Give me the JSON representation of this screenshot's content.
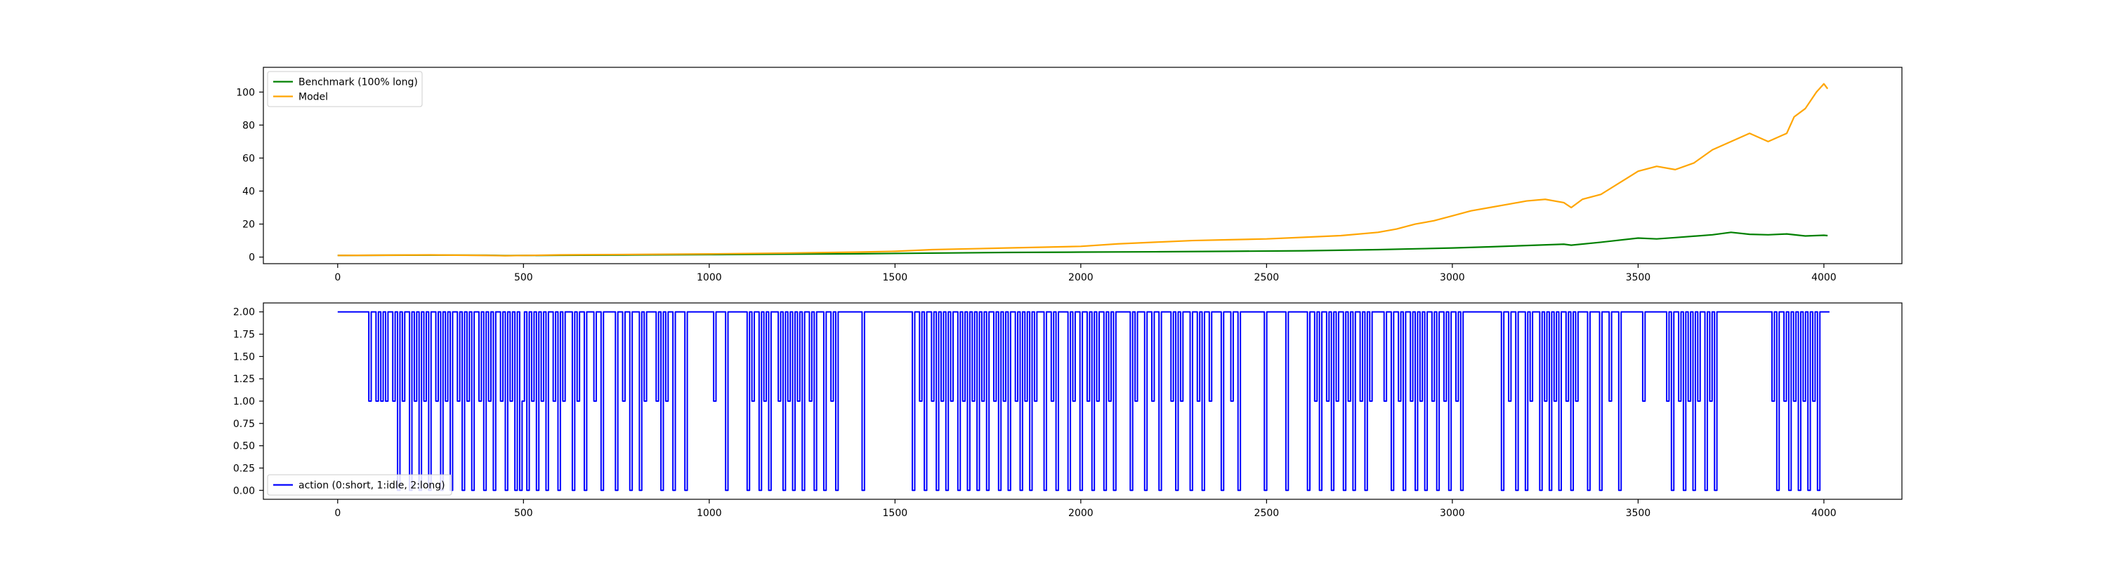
{
  "chart_data": [
    {
      "type": "line",
      "title": "",
      "xlabel": "",
      "ylabel": "",
      "xlim": [
        -200,
        4210
      ],
      "ylim": [
        -4,
        115
      ],
      "xticks": [
        0,
        500,
        1000,
        1500,
        2000,
        2500,
        3000,
        3500,
        4000
      ],
      "xtick_labels": [
        "0",
        "500",
        "1000",
        "1500",
        "2000",
        "2500",
        "3000",
        "3500",
        "4000"
      ],
      "yticks": [
        0,
        20,
        40,
        60,
        80,
        100
      ],
      "ytick_labels": [
        "0",
        "20",
        "40",
        "60",
        "80",
        "100"
      ],
      "grid": false,
      "legend": "upper left",
      "series": [
        {
          "name": "Benchmark (100% long)",
          "color": "#008000",
          "x": [
            0,
            250,
            400,
            450,
            600,
            800,
            1000,
            1200,
            1400,
            1600,
            1800,
            2000,
            2200,
            2400,
            2600,
            2800,
            2900,
            3000,
            3100,
            3200,
            3300,
            3320,
            3400,
            3500,
            3550,
            3600,
            3700,
            3750,
            3800,
            3850,
            3900,
            3950,
            4000,
            4010
          ],
          "y": [
            1.0,
            1.2,
            1.1,
            0.9,
            1.1,
            1.3,
            1.5,
            1.8,
            2.0,
            2.4,
            2.8,
            3.0,
            3.2,
            3.5,
            3.8,
            4.5,
            5.0,
            5.5,
            6.2,
            7.0,
            7.8,
            7.2,
            9.0,
            11.5,
            11.0,
            11.8,
            13.5,
            15.0,
            13.8,
            13.5,
            14.0,
            12.8,
            13.2,
            13.0
          ]
        },
        {
          "name": "Model",
          "color": "#FFA500",
          "x": [
            0,
            250,
            400,
            450,
            600,
            800,
            1000,
            1200,
            1400,
            1500,
            1600,
            1700,
            1800,
            1900,
            2000,
            2100,
            2200,
            2300,
            2400,
            2500,
            2600,
            2700,
            2800,
            2850,
            2900,
            2950,
            3000,
            3050,
            3100,
            3150,
            3200,
            3250,
            3300,
            3320,
            3350,
            3400,
            3450,
            3500,
            3550,
            3600,
            3650,
            3700,
            3750,
            3800,
            3850,
            3900,
            3920,
            3950,
            3980,
            4000,
            4010
          ],
          "y": [
            1.0,
            1.3,
            1.0,
            0.8,
            1.3,
            1.6,
            1.9,
            2.4,
            3.0,
            3.5,
            4.5,
            5.0,
            5.5,
            6.0,
            6.5,
            8.0,
            9.0,
            10.0,
            10.5,
            11.0,
            12.0,
            13.0,
            15.0,
            17.0,
            20.0,
            22.0,
            25.0,
            28.0,
            30.0,
            32.0,
            34.0,
            35.0,
            33.0,
            30.0,
            35.0,
            38.0,
            45.0,
            52.0,
            55.0,
            53.0,
            57.0,
            65.0,
            70.0,
            75.0,
            70.0,
            75.0,
            85.0,
            90.0,
            100.0,
            105.0,
            102.0
          ]
        }
      ]
    },
    {
      "type": "line",
      "step": true,
      "title": "",
      "xlabel": "",
      "ylabel": "",
      "xlim": [
        -200,
        4210
      ],
      "ylim": [
        -0.1,
        2.1
      ],
      "xticks": [
        0,
        500,
        1000,
        1500,
        2000,
        2500,
        3000,
        3500,
        4000
      ],
      "xtick_labels": [
        "0",
        "500",
        "1000",
        "1500",
        "2000",
        "2500",
        "3000",
        "3500",
        "4000"
      ],
      "yticks": [
        0.0,
        0.25,
        0.5,
        0.75,
        1.0,
        1.25,
        1.5,
        1.75,
        2.0
      ],
      "ytick_labels": [
        "0.00",
        "0.25",
        "0.50",
        "0.75",
        "1.00",
        "1.25",
        "1.50",
        "1.75",
        "2.00"
      ],
      "grid": false,
      "legend": "lower left",
      "series": [
        {
          "name": "action (0:short, 1:idle, 2:long)",
          "color": "#0000FF",
          "x_start": 0,
          "x_end": 4015,
          "values": [
            2,
            2,
            2,
            2,
            2,
            2,
            2,
            2,
            2,
            2,
            2,
            2,
            2,
            1,
            2,
            2,
            1,
            2,
            1,
            2,
            1,
            2,
            2,
            1,
            2,
            0,
            2,
            1,
            2,
            2,
            0,
            2,
            1,
            2,
            0,
            2,
            1,
            2,
            0,
            2,
            2,
            1,
            2,
            0,
            2,
            1,
            2,
            0,
            2,
            2,
            1,
            2,
            0,
            2,
            1,
            2,
            0,
            2,
            2,
            1,
            2,
            0,
            2,
            1,
            2,
            0,
            2,
            2,
            1,
            2,
            0,
            2,
            1,
            2,
            0,
            2,
            0,
            1,
            2,
            0,
            2,
            1,
            2,
            0,
            2,
            1,
            2,
            0,
            2,
            2,
            1,
            2,
            0,
            2,
            1,
            2,
            2,
            2,
            0,
            2,
            1,
            2,
            2,
            0,
            2,
            2,
            2,
            1,
            2,
            2,
            0,
            2,
            2,
            2,
            2,
            2,
            0,
            2,
            2,
            1,
            2,
            2,
            0,
            2,
            2,
            2,
            0,
            2,
            1,
            2,
            2,
            2,
            2,
            1,
            2,
            0,
            2,
            1,
            2,
            2,
            0,
            2,
            2,
            2,
            2,
            0,
            2,
            2,
            2,
            2,
            2,
            2,
            2,
            2,
            2,
            2,
            2,
            1,
            2,
            2,
            2,
            2,
            0,
            2,
            2,
            2,
            2,
            2,
            2,
            2,
            2,
            0,
            2,
            1,
            2,
            2,
            0,
            2,
            1,
            2,
            0,
            2,
            2,
            2,
            1,
            2,
            0,
            2,
            1,
            2,
            0,
            2,
            1,
            2,
            0,
            2,
            2,
            1,
            2,
            0,
            2,
            2,
            2,
            0,
            2,
            2,
            1,
            2,
            0,
            2,
            2,
            2,
            2,
            2,
            2,
            2,
            2,
            2,
            2,
            0,
            2,
            2,
            2,
            2,
            2,
            2,
            2,
            2,
            2,
            2,
            2,
            2,
            2,
            2,
            2,
            2,
            2,
            2,
            2,
            2,
            0,
            2,
            2,
            1,
            2,
            0,
            2,
            2,
            1,
            2,
            0,
            2,
            1,
            2,
            0,
            2,
            1,
            2,
            2,
            0,
            2,
            1,
            2,
            0,
            2,
            1,
            2,
            0,
            2,
            1,
            2,
            0,
            2,
            2,
            1,
            2,
            0,
            2,
            1,
            2,
            0,
            2,
            2,
            1,
            2,
            0,
            2,
            1,
            2,
            0,
            2,
            1,
            2,
            2,
            2,
            0,
            2,
            2,
            1,
            2,
            0,
            2,
            2,
            2,
            2,
            0,
            2,
            1,
            2,
            2,
            0,
            2,
            2,
            1,
            2,
            0,
            2,
            1,
            2,
            2,
            0,
            2,
            1,
            2,
            0,
            2,
            2,
            2,
            2,
            2,
            2,
            0,
            2,
            1,
            2,
            2,
            2,
            0,
            2,
            2,
            1,
            2,
            2,
            0,
            2,
            2,
            2,
            2,
            1,
            2,
            0,
            2,
            1,
            2,
            2,
            2,
            0,
            2,
            2,
            1,
            2,
            0,
            2,
            2,
            1,
            2,
            2,
            2,
            2,
            0,
            2,
            2,
            2,
            1,
            2,
            2,
            0,
            2,
            2,
            2,
            2,
            2,
            2,
            2,
            2,
            2,
            2,
            0,
            2,
            2,
            2,
            2,
            2,
            2,
            2,
            2,
            0,
            2,
            2,
            2,
            2,
            2,
            2,
            2,
            2,
            0,
            2,
            2,
            1,
            2,
            0,
            2,
            2,
            1,
            2,
            0,
            2,
            1,
            2,
            2,
            0,
            2,
            1,
            2,
            0,
            2,
            2,
            1,
            2,
            0,
            2,
            1,
            2,
            2,
            2,
            2,
            2,
            1,
            2,
            2,
            0,
            2,
            2,
            1,
            2,
            0,
            2,
            2,
            1,
            2,
            0,
            2,
            1,
            2,
            0,
            2,
            2,
            1,
            2,
            0,
            2,
            2,
            1,
            2,
            0,
            2,
            2,
            1,
            2,
            0,
            2,
            2,
            2,
            2,
            2,
            2,
            2,
            2,
            2,
            2,
            2,
            2,
            2,
            2,
            2,
            2,
            0,
            2,
            2,
            1,
            2,
            2,
            0,
            2,
            2,
            2,
            0,
            2,
            1,
            2,
            2,
            2,
            0,
            2,
            1,
            2,
            0,
            2,
            1,
            2,
            0,
            2,
            2,
            1,
            2,
            0,
            2,
            1,
            2,
            2,
            2,
            2,
            0,
            2,
            2,
            2,
            2,
            0,
            2,
            2,
            2,
            1,
            2,
            2,
            2,
            0,
            2,
            2,
            2,
            2,
            2,
            2,
            2,
            2,
            2,
            1,
            2,
            2,
            2,
            2,
            2,
            2,
            2,
            2,
            2,
            1,
            2,
            0,
            2,
            2,
            1,
            2,
            0,
            2,
            1,
            2,
            0,
            2,
            1,
            2,
            2,
            0,
            2,
            1,
            2,
            0,
            2,
            2,
            2,
            2,
            2,
            2,
            2,
            2,
            2,
            2,
            2,
            2,
            2,
            2,
            2,
            2,
            2,
            2,
            2,
            2,
            2,
            2,
            2,
            1,
            2,
            0,
            2,
            2,
            1,
            2,
            0,
            2,
            1,
            2,
            0,
            2,
            1,
            2,
            0,
            2,
            1,
            2,
            0,
            2,
            2,
            2,
            2
          ]
        }
      ]
    }
  ]
}
